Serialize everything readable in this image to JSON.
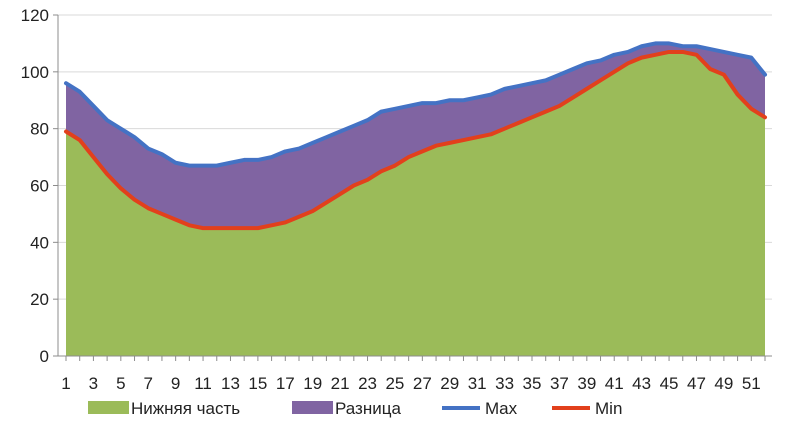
{
  "chart_data": {
    "type": "area",
    "x": [
      1,
      2,
      3,
      4,
      5,
      6,
      7,
      8,
      9,
      10,
      11,
      12,
      13,
      14,
      15,
      16,
      17,
      18,
      19,
      20,
      21,
      22,
      23,
      24,
      25,
      26,
      27,
      28,
      29,
      30,
      31,
      32,
      33,
      34,
      35,
      36,
      37,
      38,
      39,
      40,
      41,
      42,
      43,
      44,
      45,
      46,
      47,
      48,
      49,
      50,
      51,
      52
    ],
    "xticks": [
      1,
      3,
      5,
      7,
      9,
      11,
      13,
      15,
      17,
      19,
      21,
      23,
      25,
      27,
      29,
      31,
      33,
      35,
      37,
      39,
      41,
      43,
      45,
      47,
      49,
      51
    ],
    "ylim": [
      0,
      120
    ],
    "yticks": [
      0,
      20,
      40,
      60,
      80,
      100,
      120
    ],
    "grid": true,
    "legend_position": "bottom",
    "series": [
      {
        "name": "Нижняя часть",
        "kind": "area",
        "color": "#9bbb59",
        "values": [
          79,
          76,
          70,
          64,
          59,
          55,
          52,
          50,
          48,
          46,
          45,
          45,
          45,
          45,
          45,
          46,
          47,
          49,
          51,
          54,
          57,
          60,
          62,
          65,
          67,
          70,
          72,
          74,
          75,
          76,
          77,
          78,
          80,
          82,
          84,
          86,
          88,
          91,
          94,
          97,
          100,
          103,
          105,
          106,
          107,
          107,
          106,
          101,
          99,
          92,
          87,
          84
        ]
      },
      {
        "name": "Разница",
        "kind": "area",
        "color": "#8064a2",
        "values": [
          17,
          17,
          18,
          19,
          21,
          22,
          21,
          21,
          20,
          21,
          22,
          22,
          23,
          24,
          24,
          24,
          25,
          24,
          24,
          23,
          22,
          21,
          21,
          21,
          20,
          18,
          17,
          15,
          15,
          14,
          14,
          14,
          14,
          13,
          12,
          11,
          11,
          10,
          9,
          7,
          6,
          4,
          4,
          4,
          3,
          2,
          3,
          7,
          8,
          14,
          18,
          15
        ]
      },
      {
        "name": "Max",
        "kind": "line",
        "color": "#4472c4",
        "values": [
          96,
          93,
          88,
          83,
          80,
          77,
          73,
          71,
          68,
          67,
          67,
          67,
          68,
          69,
          69,
          70,
          72,
          73,
          75,
          77,
          79,
          81,
          83,
          86,
          87,
          88,
          89,
          89,
          90,
          90,
          91,
          92,
          94,
          95,
          96,
          97,
          99,
          101,
          103,
          104,
          106,
          107,
          109,
          110,
          110,
          109,
          109,
          108,
          107,
          106,
          105,
          99
        ]
      },
      {
        "name": "Min",
        "kind": "line",
        "color": "#e2401c",
        "values": [
          79,
          76,
          70,
          64,
          59,
          55,
          52,
          50,
          48,
          46,
          45,
          45,
          45,
          45,
          45,
          46,
          47,
          49,
          51,
          54,
          57,
          60,
          62,
          65,
          67,
          70,
          72,
          74,
          75,
          76,
          77,
          78,
          80,
          82,
          84,
          86,
          88,
          91,
          94,
          97,
          100,
          103,
          105,
          106,
          107,
          107,
          106,
          101,
          99,
          92,
          87,
          84
        ]
      }
    ]
  }
}
